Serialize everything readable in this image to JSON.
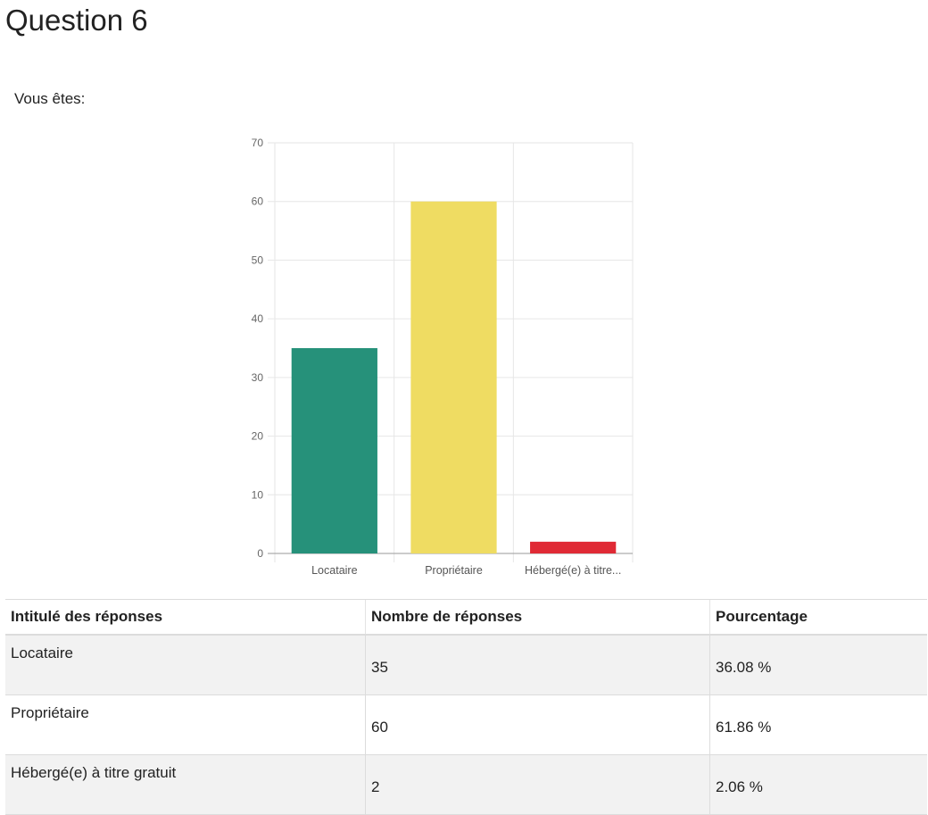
{
  "page_title": "Question 6",
  "question": "Vous êtes:",
  "chart_data": {
    "type": "bar",
    "categories": [
      "Locataire",
      "Propriétaire",
      "Hébergé(e) à titre gratuit"
    ],
    "tick_labels": [
      "Locataire",
      "Propriétaire",
      "Hébergé(e) à titre..."
    ],
    "values": [
      35,
      60,
      2
    ],
    "colors": [
      "#26917a",
      "#efdc62",
      "#e02a35"
    ],
    "title": "",
    "xlabel": "",
    "ylabel": "",
    "ylim": [
      0,
      70
    ],
    "yticks": [
      0,
      10,
      20,
      30,
      40,
      50,
      60,
      70
    ],
    "grid": true,
    "legend": "none"
  },
  "table": {
    "headers": [
      "Intitulé des réponses",
      "Nombre de réponses",
      "Pourcentage"
    ],
    "rows": [
      {
        "label": "Locataire",
        "count": "35",
        "percent": "36.08 %"
      },
      {
        "label": "Propriétaire",
        "count": "60",
        "percent": "61.86 %"
      },
      {
        "label": "Hébergé(e) à titre gratuit",
        "count": "2",
        "percent": "2.06 %"
      }
    ]
  }
}
